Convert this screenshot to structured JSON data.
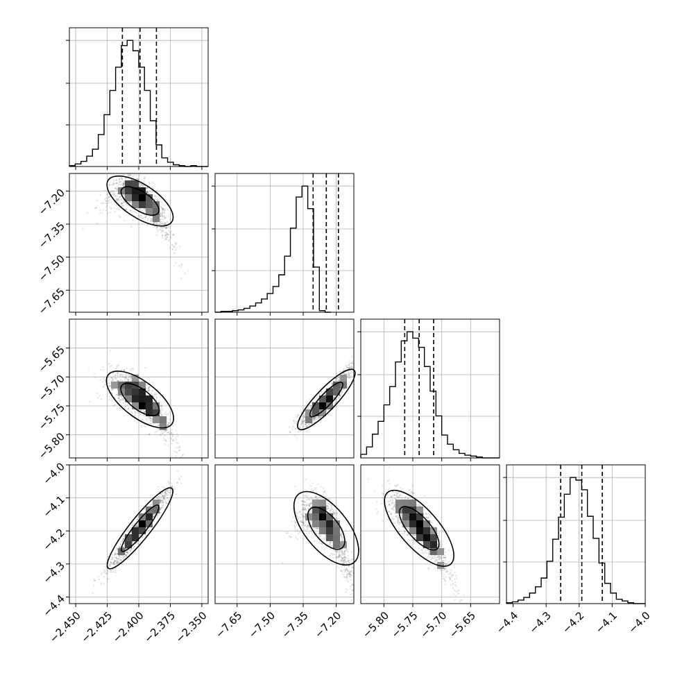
{
  "chart_data": {
    "type": "corner",
    "parameters": [
      {
        "range": [
          -2.455,
          -2.345
        ],
        "ticks": [
          -2.45,
          -2.425,
          -2.4,
          -2.375,
          -2.35
        ],
        "tick_labels": [
          "−2.450",
          "−2.425",
          "−2.400",
          "−2.375",
          "−2.350"
        ],
        "median": -2.399,
        "q16": -2.413,
        "q84": -2.386,
        "sd": 0.012
      },
      {
        "range": [
          -7.75,
          -7.12
        ],
        "ticks": [
          -7.65,
          -7.5,
          -7.35,
          -7.2
        ],
        "tick_labels": [
          "−7.65",
          "−7.50",
          "−7.35",
          "−7.20"
        ],
        "median": -7.245,
        "q16": -7.305,
        "q84": -7.19,
        "sd": 0.06
      },
      {
        "range": [
          -5.84,
          -5.6
        ],
        "ticks": [
          -5.8,
          -5.75,
          -5.7,
          -5.65
        ],
        "tick_labels": [
          "−5.80",
          "−5.75",
          "−5.70",
          "−5.65"
        ],
        "median": -5.739,
        "q16": -5.764,
        "q84": -5.714,
        "sd": 0.026
      },
      {
        "range": [
          -4.42,
          -4.0
        ],
        "ticks": [
          -4.4,
          -4.3,
          -4.2,
          -4.1,
          -4.0
        ],
        "tick_labels": [
          "−4.4",
          "−4.3",
          "−4.2",
          "−4.1",
          "−4.0"
        ],
        "median": -4.192,
        "q16": -4.256,
        "q84": -4.13,
        "sd": 0.06
      }
    ],
    "histograms": [
      {
        "bin_start": -2.455,
        "bin_width": 0.00458,
        "counts": [
          1,
          3,
          6,
          12,
          20,
          37,
          60,
          88,
          115,
          140,
          146,
          134,
          115,
          88,
          53,
          25,
          10,
          5,
          2,
          1,
          0,
          1,
          0,
          0
        ]
      },
      {
        "bin_start": -7.75,
        "bin_width": 0.0263,
        "counts": [
          0,
          1,
          1,
          2,
          3,
          5,
          8,
          12,
          17,
          24,
          33,
          48,
          72,
          108,
          148,
          162,
          133,
          58,
          2,
          0
        ]
      },
      {
        "bin_start": -5.84,
        "bin_width": 0.01,
        "counts": [
          4,
          12,
          26,
          40,
          58,
          78,
          105,
          128,
          138,
          131,
          121,
          100,
          73,
          46,
          25,
          15,
          9,
          5,
          3,
          2,
          1,
          0,
          0,
          0
        ]
      },
      {
        "bin_start": -4.42,
        "bin_width": 0.0175,
        "counts": [
          1,
          2,
          4,
          7,
          12,
          19,
          29,
          48,
          73,
          98,
          124,
          143,
          140,
          129,
          99,
          74,
          46,
          23,
          12,
          5,
          3,
          1,
          0,
          0
        ]
      }
    ],
    "pairs": [
      {
        "x": 0,
        "y": 1,
        "rho": -0.75,
        "curve": -3.2
      },
      {
        "x": 0,
        "y": 2,
        "rho": -0.78,
        "curve": -1.5
      },
      {
        "x": 1,
        "y": 2,
        "rho": 0.93,
        "curve": 1.0
      },
      {
        "x": 0,
        "y": 3,
        "rho": 0.96,
        "curve": 0.0
      },
      {
        "x": 1,
        "y": 3,
        "rho": -0.82,
        "curve": -3.0
      },
      {
        "x": 2,
        "y": 3,
        "rho": -0.86,
        "curve": -1.2
      }
    ],
    "grid": true,
    "contour_levels": [
      0.5,
      0.86
    ]
  }
}
